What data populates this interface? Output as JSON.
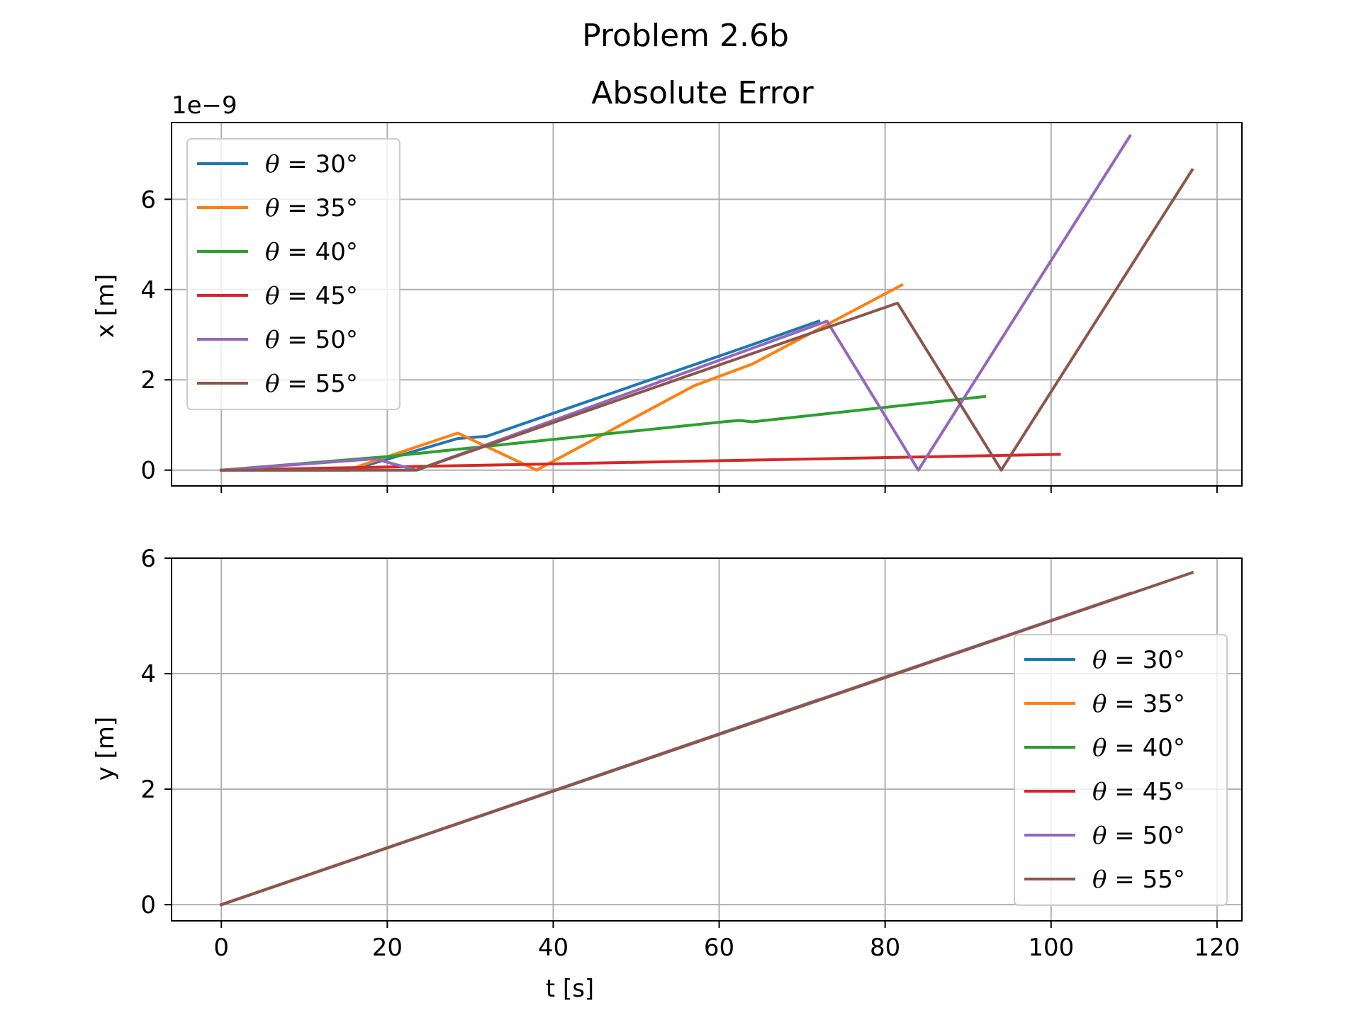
{
  "chart_data": [
    {
      "type": "line",
      "title": "Problem 2.6b",
      "subtitle": "Absolute Error",
      "xlabel": "",
      "ylabel": "x [m]",
      "offset_text": "1e−9",
      "xlim": [
        -6,
        123
      ],
      "ylim": [
        -0.35,
        7.7
      ],
      "xticks": [
        0,
        20,
        40,
        60,
        80,
        100,
        120
      ],
      "yticks": [
        0,
        2,
        4,
        6
      ],
      "ytick_labels": [
        "0",
        "2",
        "4",
        "6"
      ],
      "grid": true,
      "legend": "upper left",
      "series": [
        {
          "name": "θ = 30°",
          "color": "#1f77b4",
          "x": [
            0,
            15.5,
            28.5,
            32,
            64,
            72
          ],
          "y": [
            0,
            0,
            0.7,
            0.75,
            2.78,
            3.3
          ]
        },
        {
          "name": "θ = 35°",
          "color": "#ff7f0e",
          "x": [
            0,
            16,
            28.5,
            38,
            57,
            64,
            82
          ],
          "y": [
            0,
            0.05,
            0.82,
            0,
            1.87,
            2.35,
            4.1
          ]
        },
        {
          "name": "θ = 40°",
          "color": "#2ca02c",
          "x": [
            0,
            20,
            61,
            62.5,
            64,
            92
          ],
          "y": [
            0,
            0.3,
            1.08,
            1.1,
            1.07,
            1.63
          ]
        },
        {
          "name": "θ = 45°",
          "color": "#d62728",
          "x": [
            0,
            101
          ],
          "y": [
            0,
            0.35
          ]
        },
        {
          "name": "θ = 50°",
          "color": "#9467bd",
          "x": [
            0,
            18.5,
            23.5,
            73,
            84,
            109.5
          ],
          "y": [
            0,
            0.25,
            0,
            3.3,
            0,
            7.4
          ]
        },
        {
          "name": "θ = 55°",
          "color": "#8c564b",
          "x": [
            0,
            13,
            23.5,
            81.5,
            94,
            117
          ],
          "y": [
            0,
            0,
            0,
            3.7,
            0,
            6.65
          ]
        }
      ]
    },
    {
      "type": "line",
      "xlabel": "t [s]",
      "ylabel": "y [m]",
      "xlim": [
        -6,
        123
      ],
      "ylim": [
        -0.28,
        6.0
      ],
      "xticks": [
        0,
        20,
        40,
        60,
        80,
        100,
        120
      ],
      "yticks": [
        0,
        2,
        4,
        6
      ],
      "ytick_labels": [
        "0",
        "2",
        "4",
        "6"
      ],
      "grid": true,
      "legend": "lower right",
      "series": [
        {
          "name": "θ = 30°",
          "color": "#1f77b4",
          "x": [
            0,
            72
          ],
          "y": [
            0,
            3.55
          ]
        },
        {
          "name": "θ = 35°",
          "color": "#ff7f0e",
          "x": [
            0,
            82
          ],
          "y": [
            0,
            4.04
          ]
        },
        {
          "name": "θ = 40°",
          "color": "#2ca02c",
          "x": [
            0,
            92
          ],
          "y": [
            0,
            4.53
          ]
        },
        {
          "name": "θ = 45°",
          "color": "#d62728",
          "x": [
            0,
            101
          ],
          "y": [
            0,
            4.97
          ]
        },
        {
          "name": "θ = 50°",
          "color": "#9467bd",
          "x": [
            0,
            109.5
          ],
          "y": [
            0,
            5.39
          ]
        },
        {
          "name": "θ = 55°",
          "color": "#8c564b",
          "x": [
            0,
            117
          ],
          "y": [
            0,
            5.75
          ]
        }
      ]
    }
  ]
}
